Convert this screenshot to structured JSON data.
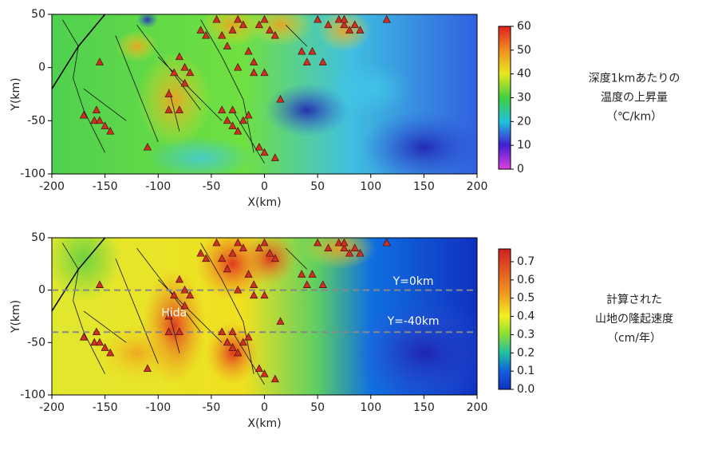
{
  "chart_data": [
    {
      "type": "heatmap",
      "xlabel": "X(km)",
      "ylabel": "Y(km)",
      "xlim": [
        -200,
        200
      ],
      "ylim": [
        -100,
        50
      ],
      "xticks": [
        -200,
        -150,
        -100,
        -50,
        0,
        50,
        100,
        150,
        200
      ],
      "yticks": [
        -100,
        -50,
        0,
        50
      ],
      "colorbar": {
        "lim": [
          0,
          60
        ],
        "ticks": [
          0,
          10,
          20,
          30,
          40,
          50,
          60
        ]
      },
      "colorbar_title": [
        "深度1kmあたりの",
        "温度の上昇量",
        "（℃/km）"
      ],
      "markers": {
        "x": [
          -170,
          -160,
          -155,
          -150,
          -145,
          -155,
          -158,
          -110,
          -90,
          -85,
          -80,
          -80,
          -75,
          -90,
          -45,
          -40,
          -35,
          -30,
          -25,
          -20,
          -15,
          -10,
          -5,
          0,
          5,
          10,
          -55,
          -60,
          -40,
          -35,
          -30,
          -20,
          -15,
          -30,
          -25,
          -5,
          0,
          10,
          15,
          0,
          -10,
          -25,
          55,
          40,
          35,
          45,
          50,
          60,
          70,
          75,
          80,
          75,
          85,
          90,
          115,
          -75,
          -70
        ],
        "y": [
          -45,
          -50,
          -50,
          -55,
          -60,
          5,
          -40,
          -75,
          -25,
          -5,
          -40,
          10,
          -15,
          -40,
          45,
          30,
          20,
          35,
          45,
          40,
          15,
          5,
          40,
          45,
          35,
          30,
          30,
          35,
          -40,
          -50,
          -55,
          -50,
          -45,
          -40,
          -60,
          -75,
          -80,
          -85,
          -30,
          -5,
          -5,
          0,
          5,
          5,
          15,
          15,
          45,
          40,
          45,
          40,
          35,
          45,
          40,
          35,
          45,
          0,
          -5
        ]
      }
    },
    {
      "type": "heatmap",
      "xlabel": "X(km)",
      "ylabel": "Y(km)",
      "xlim": [
        -200,
        200
      ],
      "ylim": [
        -100,
        50
      ],
      "xticks": [
        -200,
        -150,
        -100,
        -50,
        0,
        50,
        100,
        150,
        200
      ],
      "yticks": [
        -100,
        -50,
        0,
        50
      ],
      "colorbar": {
        "lim": [
          0,
          0.77
        ],
        "ticks": [
          {
            "value": 0,
            "label": "0.0"
          },
          0.1,
          0.2,
          0.3,
          0.4,
          0.5,
          0.6,
          0.7
        ]
      },
      "colorbar_title": [
        "計算された",
        "山地の隆起速度",
        "（cm/年）"
      ],
      "hlines": [
        0,
        -40
      ],
      "annotations": [
        "Hida",
        "Y=0km",
        "Y=-40km"
      ],
      "markers": {
        "x": [
          -170,
          -160,
          -155,
          -150,
          -145,
          -155,
          -158,
          -110,
          -90,
          -85,
          -80,
          -80,
          -75,
          -90,
          -45,
          -40,
          -35,
          -30,
          -25,
          -20,
          -15,
          -10,
          -5,
          0,
          5,
          10,
          -55,
          -60,
          -40,
          -35,
          -30,
          -20,
          -15,
          -30,
          -25,
          -5,
          0,
          10,
          15,
          0,
          -10,
          -25,
          55,
          40,
          35,
          45,
          50,
          60,
          70,
          75,
          80,
          75,
          85,
          90,
          115,
          -75,
          -70
        ],
        "y": [
          -45,
          -50,
          -50,
          -55,
          -60,
          5,
          -40,
          -75,
          -25,
          -5,
          -40,
          10,
          -15,
          -40,
          45,
          30,
          20,
          35,
          45,
          40,
          15,
          5,
          40,
          45,
          35,
          30,
          30,
          35,
          -40,
          -50,
          -55,
          -50,
          -45,
          -40,
          -60,
          -75,
          -80,
          -85,
          -30,
          -5,
          -5,
          0,
          5,
          5,
          15,
          15,
          45,
          40,
          45,
          40,
          35,
          45,
          40,
          35,
          45,
          0,
          -5
        ]
      }
    }
  ]
}
